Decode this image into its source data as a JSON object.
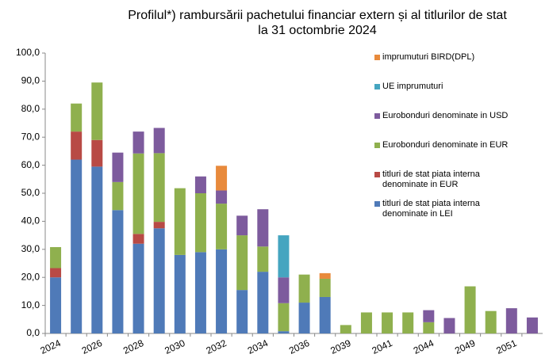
{
  "chart_data": {
    "type": "bar",
    "stacked": true,
    "title": "Profilul*) rambursării pachetului financiar extern și al titlurilor de stat\nla 31 octombrie 2024",
    "categories": [
      "2024",
      null,
      "2026",
      null,
      "2028",
      null,
      "2030",
      null,
      "2032",
      null,
      "2034",
      null,
      "2036",
      null,
      "2039",
      null,
      "2041",
      null,
      "2044",
      null,
      "2049",
      null,
      "2051",
      null
    ],
    "series": [
      {
        "name": "titluri de stat piata interna\ndenominate  in LEI",
        "color": "#4f7ab8",
        "values": [
          20,
          62,
          59.5,
          44,
          32,
          37.5,
          28,
          29,
          30,
          15.5,
          22,
          0.8,
          11,
          13,
          0,
          0,
          0,
          0,
          0,
          0,
          0,
          0,
          0,
          0
        ]
      },
      {
        "name": "titluri de stat piata interna\ndenominate  in EUR",
        "color": "#b84a45",
        "values": [
          3.3,
          10,
          9.5,
          0,
          3.5,
          2.3,
          0,
          0,
          0,
          0,
          0,
          0,
          0,
          0,
          0,
          0,
          0,
          0,
          0,
          0,
          0,
          0,
          0,
          0
        ]
      },
      {
        "name": "Eurobonduri  denominate in EUR",
        "color": "#8fb04e",
        "values": [
          7.5,
          10,
          20.5,
          10,
          28.7,
          24.5,
          23.8,
          21,
          16.3,
          19.5,
          9,
          10,
          10,
          6.5,
          3,
          7.5,
          7.5,
          7.5,
          4,
          0,
          16.8,
          8,
          0,
          0
        ]
      },
      {
        "name": "Eurobonduri denominate in USD",
        "color": "#7d5b9d",
        "values": [
          0,
          0,
          0,
          10.5,
          7.8,
          9,
          0,
          6,
          4.7,
          7,
          13.3,
          9.2,
          0,
          0,
          0,
          0,
          0,
          0,
          4.3,
          5.5,
          0,
          0,
          9,
          5.7
        ]
      },
      {
        "name": "UE imprumuturi",
        "color": "#45a5c0",
        "values": [
          0,
          0,
          0,
          0,
          0,
          0,
          0,
          0,
          0,
          0,
          0,
          15,
          0,
          0,
          0,
          0,
          0,
          0,
          0,
          0,
          0,
          0,
          0,
          0
        ]
      },
      {
        "name": "imprumuturi BIRD(DPL)",
        "color": "#e88a3c",
        "values": [
          0,
          0,
          0,
          0,
          0,
          0,
          0,
          0,
          8.8,
          0,
          0,
          0,
          0,
          2,
          0,
          0,
          0,
          0,
          0,
          0,
          0,
          0,
          0,
          0
        ]
      }
    ],
    "ylim": [
      0,
      100
    ],
    "yticks": [
      {
        "value": 0,
        "label": "0,0"
      },
      {
        "value": 10,
        "label": "10,0"
      },
      {
        "value": 20,
        "label": "20,0"
      },
      {
        "value": 30,
        "label": "30,0"
      },
      {
        "value": 40,
        "label": "40,0"
      },
      {
        "value": 50,
        "label": "50,0"
      },
      {
        "value": 60,
        "label": "60,0"
      },
      {
        "value": 70,
        "label": "70,0"
      },
      {
        "value": 80,
        "label": "80,0"
      },
      {
        "value": 90,
        "label": "90,0"
      },
      {
        "value": 100,
        "label": "100,0"
      }
    ],
    "legend": "right"
  }
}
